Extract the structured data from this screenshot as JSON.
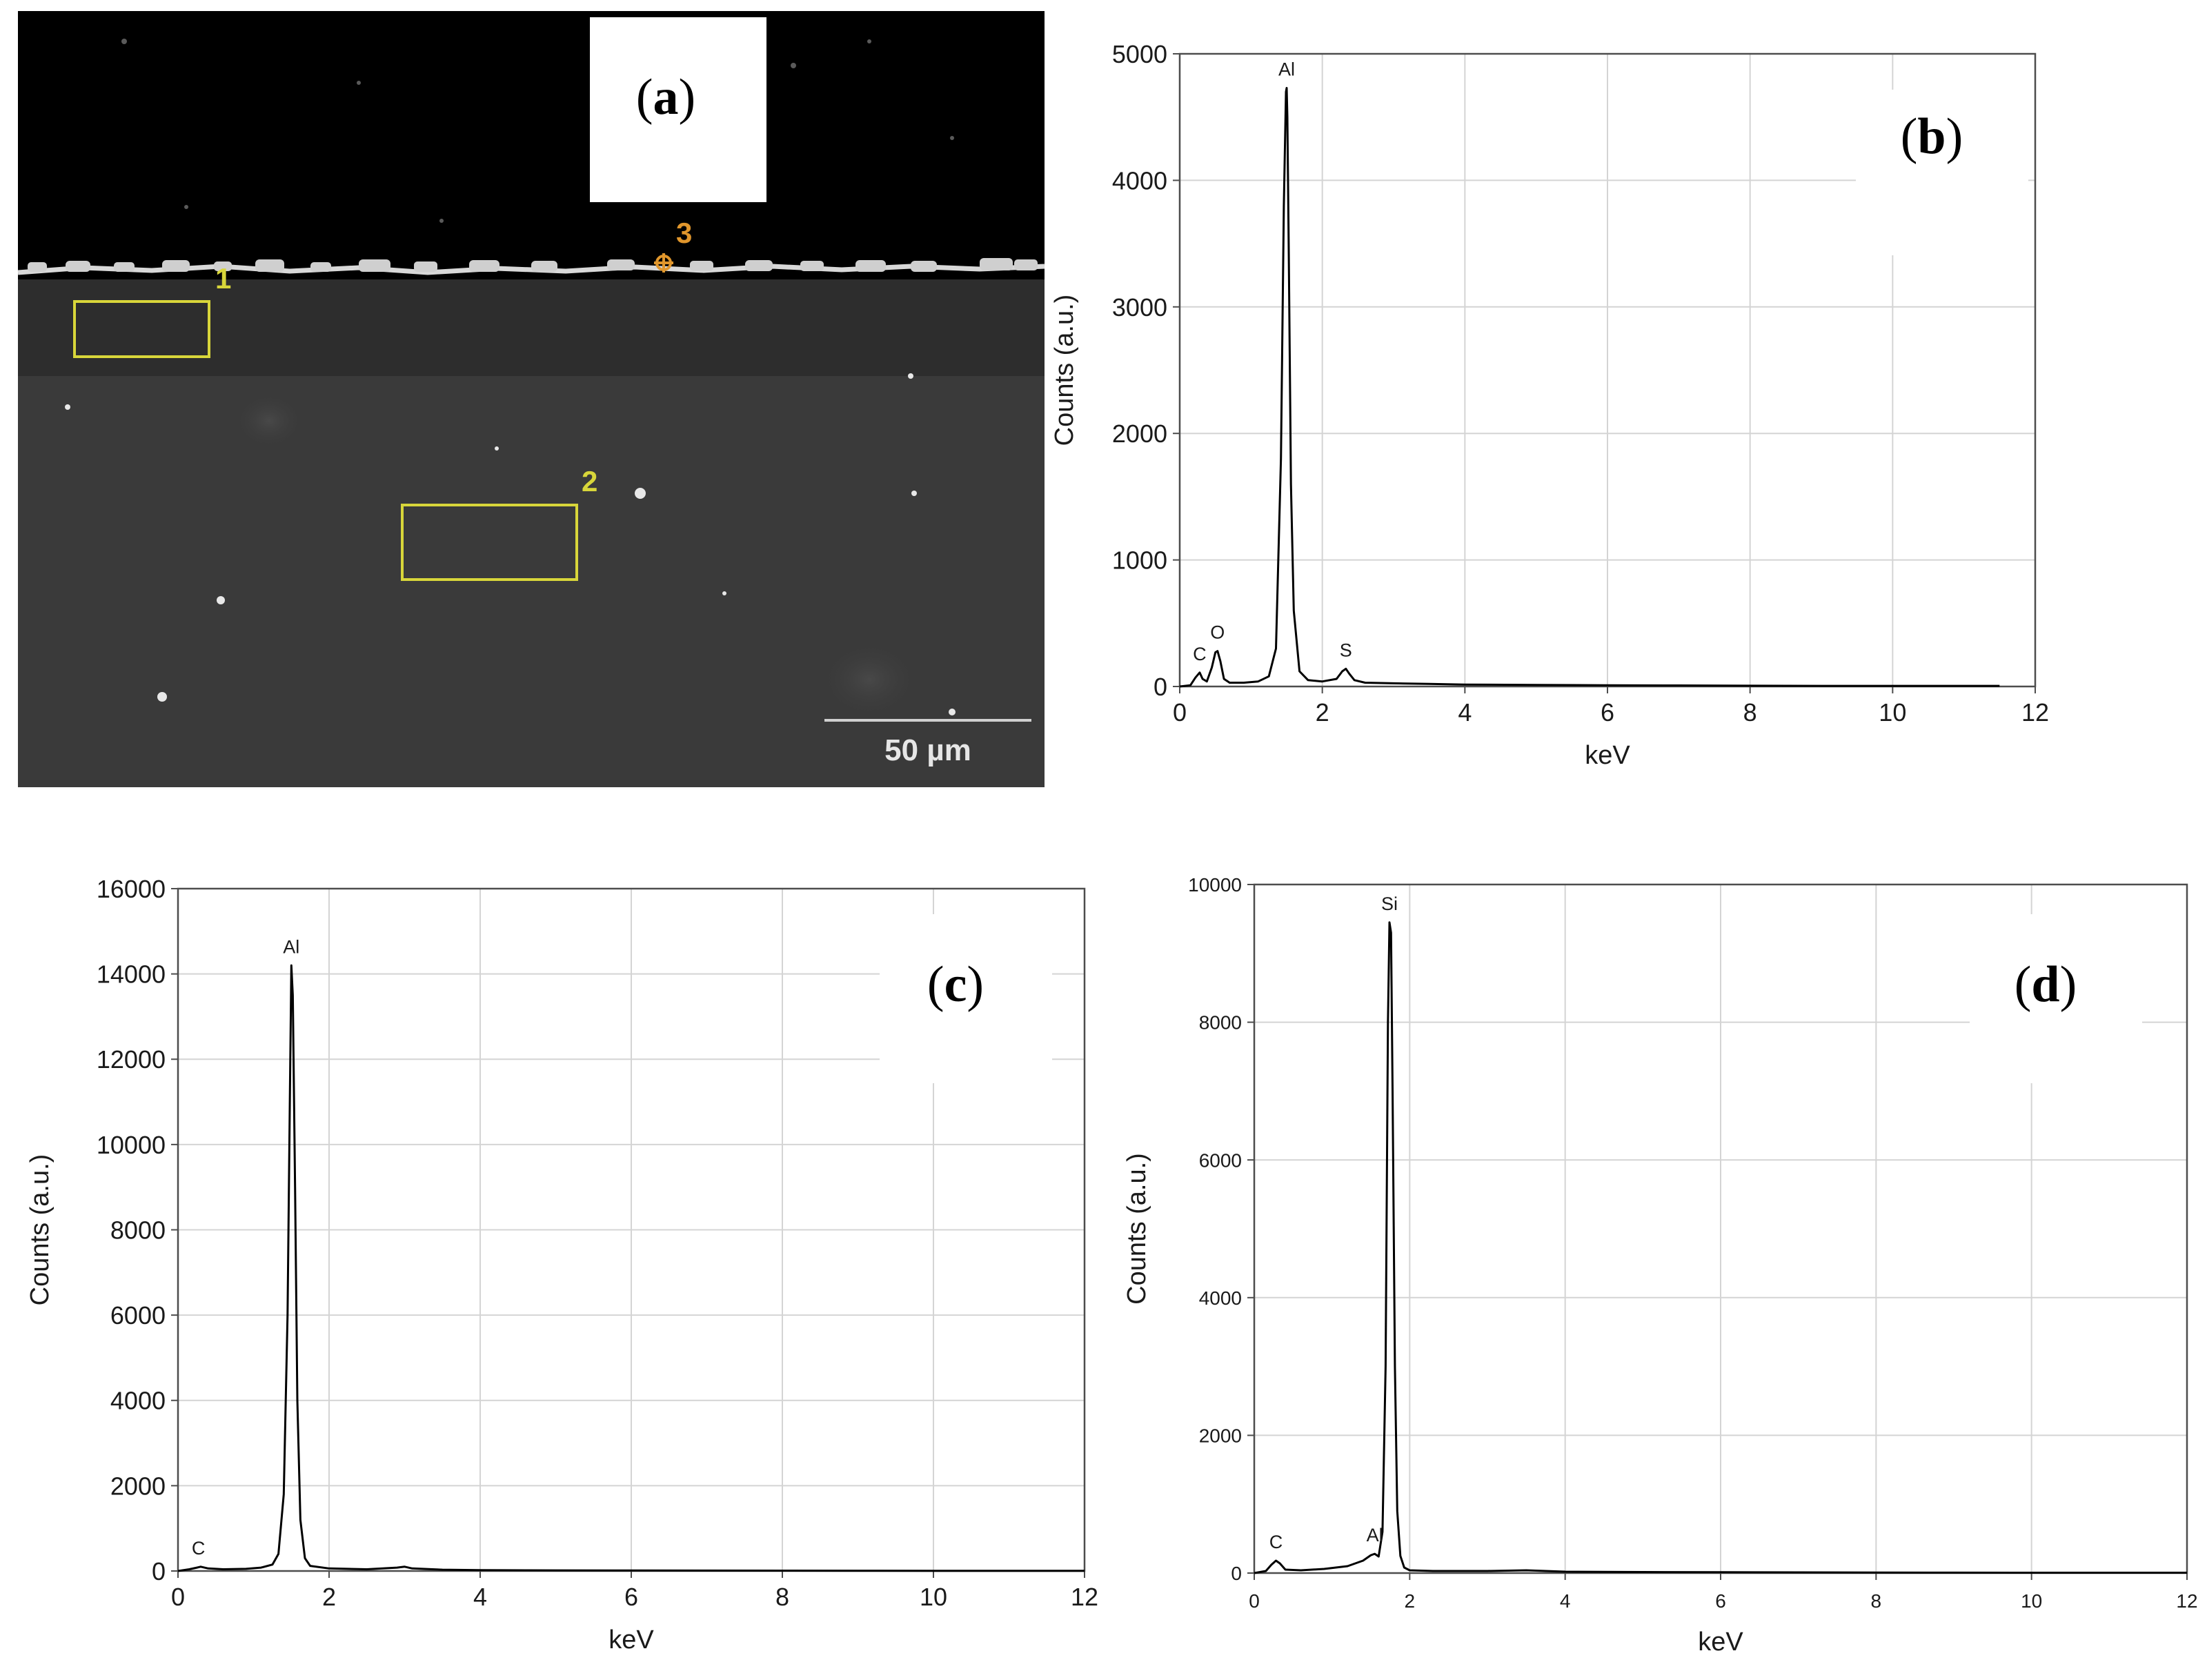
{
  "panels": {
    "a": {
      "letter": "a"
    },
    "b": {
      "letter": "b"
    },
    "c": {
      "letter": "c"
    },
    "d": {
      "letter": "d"
    }
  },
  "sem_image": {
    "region_labels": [
      "1",
      "2",
      "3"
    ],
    "scale_bar_label": "50 µm",
    "colors": {
      "background": "#000000",
      "substrate": "#3b3b3b",
      "coating": "#2c2c2c",
      "region_box": "#d8d63a",
      "point_marker": "#e0962c"
    }
  },
  "chart_data": [
    {
      "id": "b",
      "type": "line",
      "xlabel": "keV",
      "ylabel": "Counts (a.u.)",
      "xlim": [
        0,
        12
      ],
      "ylim": [
        0,
        5000
      ],
      "x_ticks": [
        0,
        2,
        4,
        6,
        8,
        10,
        12
      ],
      "y_ticks": [
        0,
        1000,
        2000,
        3000,
        4000,
        5000
      ],
      "grid": true,
      "series": [
        {
          "x": [
            0,
            0.15,
            0.22,
            0.28,
            0.32,
            0.38,
            0.45,
            0.5,
            0.53,
            0.57,
            0.62,
            0.7,
            0.9,
            1.1,
            1.25,
            1.35,
            1.42,
            1.46,
            1.49,
            1.5,
            1.51,
            1.53,
            1.56,
            1.6,
            1.68,
            1.8,
            2.0,
            2.2,
            2.28,
            2.33,
            2.38,
            2.45,
            2.6,
            3.0,
            3.5,
            4.0,
            5.0,
            6.0,
            7.0,
            8.0,
            9.0,
            10.0,
            11.0,
            11.5
          ],
          "values": [
            0,
            10,
            70,
            110,
            60,
            40,
            150,
            270,
            280,
            200,
            60,
            30,
            30,
            40,
            80,
            300,
            1800,
            3800,
            4700,
            4730,
            4500,
            3400,
            1600,
            600,
            120,
            50,
            40,
            60,
            120,
            140,
            100,
            50,
            30,
            25,
            20,
            15,
            12,
            10,
            8,
            6,
            5,
            5,
            5,
            5
          ]
        }
      ],
      "annotations": [
        {
          "text": "Al",
          "x": 1.5,
          "y": 4730
        },
        {
          "text": "O",
          "x": 0.53,
          "y": 280
        },
        {
          "text": "C",
          "x": 0.28,
          "y": 110
        },
        {
          "text": "S",
          "x": 2.33,
          "y": 140
        }
      ]
    },
    {
      "id": "c",
      "type": "line",
      "xlabel": "keV",
      "ylabel": "Counts (a.u.)",
      "xlim": [
        0,
        12
      ],
      "ylim": [
        0,
        16000
      ],
      "x_ticks": [
        0,
        2,
        4,
        6,
        8,
        10,
        12
      ],
      "y_ticks": [
        0,
        2000,
        4000,
        6000,
        8000,
        10000,
        12000,
        14000,
        16000
      ],
      "grid": true,
      "series": [
        {
          "x": [
            0,
            0.15,
            0.25,
            0.3,
            0.4,
            0.6,
            0.9,
            1.1,
            1.25,
            1.33,
            1.4,
            1.45,
            1.48,
            1.5,
            1.52,
            1.55,
            1.58,
            1.62,
            1.68,
            1.75,
            2.0,
            2.5,
            2.9,
            3.0,
            3.1,
            3.5,
            4.0,
            5.0,
            6.0,
            7.0,
            8.0,
            9.0,
            10.0,
            11.0,
            12.0
          ],
          "values": [
            0,
            40,
            80,
            100,
            60,
            40,
            50,
            80,
            150,
            400,
            1800,
            6000,
            11000,
            14200,
            13500,
            9000,
            4000,
            1200,
            300,
            120,
            60,
            40,
            80,
            100,
            60,
            30,
            20,
            15,
            12,
            10,
            8,
            6,
            5,
            5,
            5
          ]
        }
      ],
      "annotations": [
        {
          "text": "Al",
          "x": 1.5,
          "y": 14200
        },
        {
          "text": "C",
          "x": 0.27,
          "y": 100
        }
      ]
    },
    {
      "id": "d",
      "type": "line",
      "xlabel": "keV",
      "ylabel": "Counts (a.u.)",
      "xlim": [
        0,
        12
      ],
      "ylim": [
        0,
        10000
      ],
      "x_ticks": [
        0,
        2,
        4,
        6,
        8,
        10,
        12
      ],
      "y_ticks": [
        0,
        2000,
        4000,
        6000,
        8000,
        10000
      ],
      "grid": true,
      "series": [
        {
          "x": [
            0,
            0.15,
            0.22,
            0.28,
            0.33,
            0.4,
            0.6,
            0.9,
            1.2,
            1.4,
            1.5,
            1.55,
            1.6,
            1.65,
            1.69,
            1.72,
            1.74,
            1.76,
            1.78,
            1.81,
            1.84,
            1.88,
            1.93,
            2.0,
            2.3,
            3.0,
            3.5,
            4.0,
            5.0,
            6.0,
            7.0,
            8.0,
            9.0,
            10.0,
            11.0,
            12.0
          ],
          "values": [
            0,
            30,
            120,
            180,
            140,
            50,
            40,
            60,
            100,
            180,
            260,
            280,
            240,
            600,
            3000,
            8000,
            9450,
            9300,
            7000,
            3000,
            900,
            250,
            80,
            40,
            30,
            30,
            40,
            20,
            15,
            12,
            10,
            8,
            6,
            5,
            5,
            5
          ]
        }
      ],
      "annotations": [
        {
          "text": "Si",
          "x": 1.74,
          "y": 9450
        },
        {
          "text": "Al",
          "x": 1.55,
          "y": 280
        },
        {
          "text": "C",
          "x": 0.28,
          "y": 180
        }
      ]
    }
  ]
}
